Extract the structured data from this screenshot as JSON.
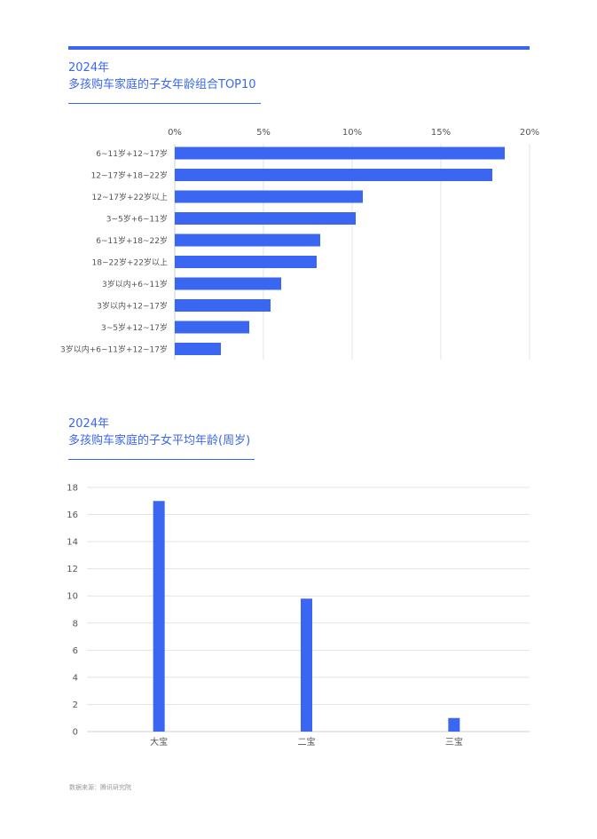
{
  "section1": {
    "year": "2024年",
    "title": "多孩购车家庭的子女年龄组合TOP10"
  },
  "section2": {
    "year": "2024年",
    "title": "多孩购车家庭的子女平均年龄(周岁)"
  },
  "source": "数据来源：腾讯研究院",
  "colors": {
    "accent": "#3A66F2",
    "grid": "#E3E3E3",
    "text": "#555555"
  },
  "chart_data": [
    {
      "type": "bar",
      "orientation": "horizontal",
      "title": "多孩购车家庭的子女年龄组合TOP10",
      "categories": [
        "6~11岁+12~17岁",
        "12~17岁+18~22岁",
        "12~17岁+22岁以上",
        "3~5岁+6~11岁",
        "6~11岁+18~22岁",
        "18~22岁+22岁以上",
        "3岁以内+6~11岁",
        "3岁以内+12~17岁",
        "3~5岁+12~17岁",
        "3岁以内+6~11岁+12~17岁"
      ],
      "values": [
        18.6,
        17.9,
        10.6,
        10.2,
        8.2,
        8.0,
        6.0,
        5.4,
        4.2,
        2.6
      ],
      "xlim": [
        0,
        20
      ],
      "xticks": [
        "0%",
        "5%",
        "10%",
        "15%",
        "20%"
      ],
      "axis_position": "top",
      "grid": true
    },
    {
      "type": "bar",
      "orientation": "vertical",
      "title": "多孩购车家庭的子女平均年龄(周岁)",
      "categories": [
        "大宝",
        "二宝",
        "三宝"
      ],
      "values": [
        17.0,
        9.8,
        1.0
      ],
      "ylim": [
        0,
        18
      ],
      "yticks": [
        "0",
        "2",
        "4",
        "6",
        "8",
        "10",
        "12",
        "14",
        "16",
        "18"
      ],
      "grid": true
    }
  ]
}
